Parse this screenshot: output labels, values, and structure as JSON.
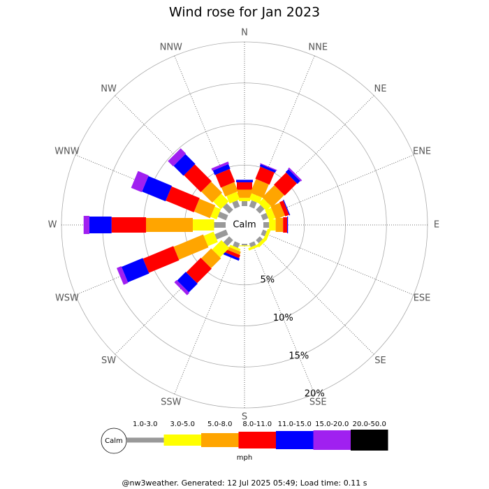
{
  "chart_data": {
    "type": "windrose",
    "title": "Wind rose for Jan 2023",
    "categories": [
      "N",
      "NNE",
      "NE",
      "ENE",
      "E",
      "ESE",
      "SE",
      "SSE",
      "S",
      "SSW",
      "SW",
      "WSW",
      "W",
      "WNW",
      "NW",
      "NNW"
    ],
    "calm_label": "Calm",
    "series": [
      {
        "name": "1.0-3.0",
        "color": "#999999",
        "values": [
          0.6,
          0.8,
          0.8,
          0.7,
          0.7,
          0.5,
          0.5,
          0.5,
          0.2,
          0.6,
          1.0,
          1.5,
          1.4,
          1.1,
          1.1,
          0.8
        ]
      },
      {
        "name": "3.0-5.0",
        "color": "#ffff00",
        "values": [
          0.4,
          0.8,
          0.8,
          0.8,
          0.8,
          0.4,
          0.4,
          0.3,
          0.1,
          0.3,
          1.6,
          1.3,
          2.6,
          0.8,
          1.3,
          1.0
        ]
      },
      {
        "name": "5.0-8.0",
        "color": "#ffa500",
        "values": [
          1.0,
          1.8,
          2.1,
          1.2,
          0.9,
          0,
          0,
          0,
          0,
          0.4,
          1.7,
          3.9,
          5.7,
          2.1,
          1.9,
          1.2
        ]
      },
      {
        "name": "8.0-11.0",
        "color": "#ff0000",
        "values": [
          0.9,
          1.6,
          2.1,
          0.5,
          0.5,
          0,
          0,
          0,
          0,
          0.4,
          2.5,
          4.0,
          4.2,
          3.7,
          2.9,
          1.7
        ]
      },
      {
        "name": "11.0-15.0",
        "color": "#0000ff",
        "values": [
          0.3,
          0.3,
          0.5,
          0.1,
          0.1,
          0,
          0,
          0,
          0,
          0.3,
          1.5,
          2.8,
          2.7,
          3.1,
          1.7,
          0.6
        ]
      },
      {
        "name": "15.0-20.0",
        "color": "#a020f0",
        "values": [
          0,
          0.1,
          0.2,
          0,
          0,
          0,
          0,
          0,
          0,
          0,
          0.4,
          0.6,
          0.7,
          1.4,
          0.9,
          0.3
        ]
      },
      {
        "name": "20.0-50.0",
        "color": "#000000",
        "values": [
          0,
          0,
          0,
          0,
          0,
          0,
          0,
          0,
          0,
          0,
          0,
          0,
          0,
          0,
          0,
          0
        ]
      }
    ],
    "rlim": [
      0,
      20
    ],
    "rticks": [
      {
        "value": 5,
        "label": "5%"
      },
      {
        "value": 10,
        "label": "10%"
      },
      {
        "value": 15,
        "label": "15%"
      },
      {
        "value": 20,
        "label": "20%"
      }
    ],
    "units": "mph",
    "footer": "@nw3weather.  Generated: 12 Jul 2025 05:49; Load time: 0.11 s"
  }
}
